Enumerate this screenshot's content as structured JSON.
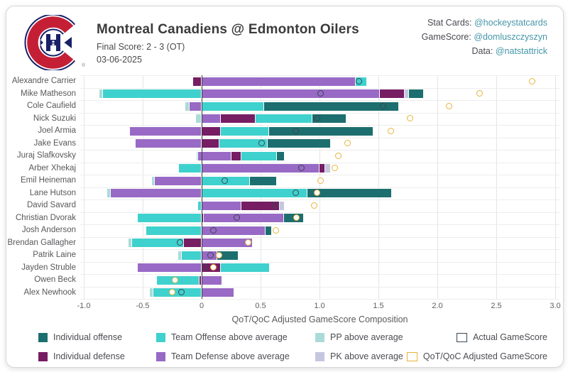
{
  "header": {
    "title": "Montreal Canadiens @ Edmonton Oilers",
    "final_score": "Final Score: 2 - 3 (OT)",
    "date": "03-06-2025",
    "team_logo": "montreal-canadiens-logo",
    "credits": [
      {
        "label": "Stat Cards:",
        "handle": "@hockeystatcards"
      },
      {
        "label": "GameScore:",
        "handle": "@domluszczyszyn"
      },
      {
        "label": "Data:",
        "handle": "@natstattrick"
      }
    ]
  },
  "colors": {
    "ind_off": "#1d6e6e",
    "ind_def": "#771d63",
    "team_off": "#3fd1cd",
    "team_def": "#9869c5",
    "pp": "#abdbd8",
    "pk": "#c5c7e0",
    "actual_marker": "#3b4754",
    "adjusted_marker": "#e8b33c",
    "handle_text": "#4596a8",
    "zero_line": "#3c3c3c"
  },
  "chart_data": {
    "type": "bar",
    "orientation": "horizontal",
    "stacked": true,
    "xlabel": "QoT/QoC Adjusted GameScore Composition",
    "xlim": [
      -1.02,
      3.05
    ],
    "grid": true,
    "xticks": [
      -1.0,
      -0.5,
      0,
      0.5,
      1.0,
      1.5,
      2.0,
      2.5,
      3.0
    ],
    "xtick_labels": [
      "-1.0",
      "-0.5",
      "0",
      "0.5",
      "1.0",
      "1.5",
      "2.0",
      "2.5",
      "3.0"
    ],
    "segment_categories": {
      "ind_off": "Individual offense",
      "ind_def": "Individual defense",
      "team_off": "Team Offense above average",
      "team_def": "Team Defense above average",
      "pp": "PP above average",
      "pk": "PK above average"
    },
    "players": [
      {
        "name": "Alexandre Carrier",
        "segments": [
          [
            "ind_def",
            -0.07,
            0
          ],
          [
            "team_def",
            0,
            1.31
          ],
          [
            "team_off",
            1.31,
            1.4
          ]
        ],
        "actual": 1.34,
        "adjusted": 2.81
      },
      {
        "name": "Mike Matheson",
        "segments": [
          [
            "pp",
            -0.87,
            -0.84
          ],
          [
            "team_off",
            -0.84,
            0
          ],
          [
            "team_def",
            0,
            1.51
          ],
          [
            "ind_def",
            1.51,
            1.72
          ],
          [
            "pk",
            1.72,
            1.76
          ],
          [
            "ind_off",
            1.76,
            1.88
          ]
        ],
        "actual": 1.01,
        "adjusted": 2.36
      },
      {
        "name": "Cole Caufield",
        "segments": [
          [
            "pp",
            -0.14,
            -0.1
          ],
          [
            "team_def",
            -0.1,
            0
          ],
          [
            "team_off",
            0,
            0.53
          ],
          [
            "ind_off",
            0.53,
            1.67
          ]
        ],
        "actual": 1.54,
        "adjusted": 2.1
      },
      {
        "name": "Nick Suzuki",
        "segments": [
          [
            "pp",
            -0.05,
            0
          ],
          [
            "team_def",
            0,
            0.16
          ],
          [
            "ind_def",
            0.16,
            0.46
          ],
          [
            "team_off",
            0.46,
            0.94
          ],
          [
            "ind_off",
            0.94,
            1.22
          ]
        ],
        "actual": 0.98,
        "adjusted": 1.77
      },
      {
        "name": "Joel Armia",
        "segments": [
          [
            "team_def",
            -0.61,
            0
          ],
          [
            "ind_def",
            0,
            0.16
          ],
          [
            "team_off",
            0.16,
            0.57
          ],
          [
            "ind_off",
            0.57,
            1.45
          ]
        ],
        "actual": 0.8,
        "adjusted": 1.61
      },
      {
        "name": "Jake Evans",
        "segments": [
          [
            "team_def",
            -0.56,
            0
          ],
          [
            "ind_def",
            0,
            0.15
          ],
          [
            "team_off",
            0.15,
            0.56
          ],
          [
            "ind_off",
            0.56,
            1.09
          ]
        ],
        "actual": 0.51,
        "adjusted": 1.24
      },
      {
        "name": "Juraj Slafkovsky",
        "segments": [
          [
            "pp",
            -0.04,
            -0.03
          ],
          [
            "team_def",
            -0.03,
            0.25
          ],
          [
            "ind_def",
            0.25,
            0.34
          ],
          [
            "team_off",
            0.34,
            0.64
          ],
          [
            "ind_off",
            0.64,
            0.7
          ]
        ],
        "actual": null,
        "adjusted": 1.16
      },
      {
        "name": "Arber Xhekaj",
        "segments": [
          [
            "team_off",
            -0.19,
            0
          ],
          [
            "team_def",
            0,
            1.0
          ],
          [
            "ind_def",
            1.0,
            1.05
          ],
          [
            "pk",
            1.05,
            1.09
          ]
        ],
        "actual": 0.85,
        "adjusted": 1.13
      },
      {
        "name": "Emil Heineman",
        "segments": [
          [
            "pp",
            -0.42,
            -0.4
          ],
          [
            "team_def",
            -0.4,
            0
          ],
          [
            "team_off",
            0,
            0.41
          ],
          [
            "ind_off",
            0.41,
            0.63
          ]
        ],
        "actual": 0.2,
        "adjusted": 1.01
      },
      {
        "name": "Lane Hutson",
        "segments": [
          [
            "pp",
            -0.8,
            -0.77
          ],
          [
            "team_def",
            -0.77,
            0
          ],
          [
            "team_off",
            0,
            0.9
          ],
          [
            "ind_off",
            0.9,
            1.61
          ]
        ],
        "actual": 0.8,
        "adjusted": 0.98
      },
      {
        "name": "David Savard",
        "segments": [
          [
            "team_off",
            -0.03,
            0
          ],
          [
            "team_def",
            0,
            0.34
          ],
          [
            "ind_def",
            0.34,
            0.66
          ],
          [
            "pk",
            0.66,
            0.7
          ]
        ],
        "actual": 0.63,
        "adjusted": 0.96
      },
      {
        "name": "Christian Dvorak",
        "segments": [
          [
            "team_off",
            -0.54,
            0
          ],
          [
            "ind_def",
            0,
            0.02
          ],
          [
            "team_def",
            0.02,
            0.7
          ],
          [
            "ind_off",
            0.7,
            0.86
          ]
        ],
        "actual": 0.3,
        "adjusted": 0.81
      },
      {
        "name": "Josh Anderson",
        "segments": [
          [
            "team_off",
            -0.47,
            0
          ],
          [
            "team_def",
            0,
            0.54
          ],
          [
            "ind_off",
            0.54,
            0.59
          ]
        ],
        "actual": 0.1,
        "adjusted": 0.63
      },
      {
        "name": "Brendan Gallagher",
        "segments": [
          [
            "pp",
            -0.62,
            -0.59
          ],
          [
            "team_off",
            -0.59,
            -0.15
          ],
          [
            "ind_def",
            -0.15,
            0
          ],
          [
            "team_def",
            0,
            0.43
          ]
        ],
        "actual": -0.18,
        "adjusted": 0.4
      },
      {
        "name": "Patrik Laine",
        "segments": [
          [
            "pp",
            -0.2,
            -0.17
          ],
          [
            "team_off",
            -0.17,
            0
          ],
          [
            "team_def",
            0,
            0.13
          ],
          [
            "ind_off",
            0.13,
            0.31
          ]
        ],
        "actual": 0.08,
        "adjusted": 0.15
      },
      {
        "name": "Jayden Struble",
        "segments": [
          [
            "team_def",
            -0.54,
            0
          ],
          [
            "ind_def",
            0,
            0.16
          ],
          [
            "team_off",
            0.16,
            0.57
          ]
        ],
        "actual": 0.03,
        "adjusted": 0.1
      },
      {
        "name": "Owen Beck",
        "segments": [
          [
            "team_off",
            -0.38,
            -0.02
          ],
          [
            "ind_def",
            -0.02,
            0
          ],
          [
            "team_def",
            0,
            0.17
          ]
        ],
        "actual": null,
        "adjusted": -0.22
      },
      {
        "name": "Alex Newhook",
        "segments": [
          [
            "pp",
            -0.44,
            -0.41
          ],
          [
            "team_off",
            -0.41,
            0
          ],
          [
            "team_def",
            0,
            0.27
          ]
        ],
        "actual": -0.17,
        "adjusted": -0.25
      }
    ]
  },
  "legend": {
    "rows": [
      [
        {
          "type": "fill",
          "key": "ind_off",
          "label": "Individual offense"
        },
        {
          "type": "fill",
          "key": "team_off",
          "label": "Team Offense above average"
        },
        {
          "type": "fill",
          "key": "pp",
          "label": "PP above average"
        },
        {
          "type": "marker",
          "key": "actual_marker",
          "label": "Actual GameScore"
        }
      ],
      [
        {
          "type": "fill",
          "key": "ind_def",
          "label": "Individual defense"
        },
        {
          "type": "fill",
          "key": "team_def",
          "label": "Team Defense above average"
        },
        {
          "type": "fill",
          "key": "pk",
          "label": "PK above average"
        },
        {
          "type": "marker",
          "key": "adjusted_marker",
          "label": "QoT/QoC Adjusted GameScore"
        }
      ]
    ]
  }
}
